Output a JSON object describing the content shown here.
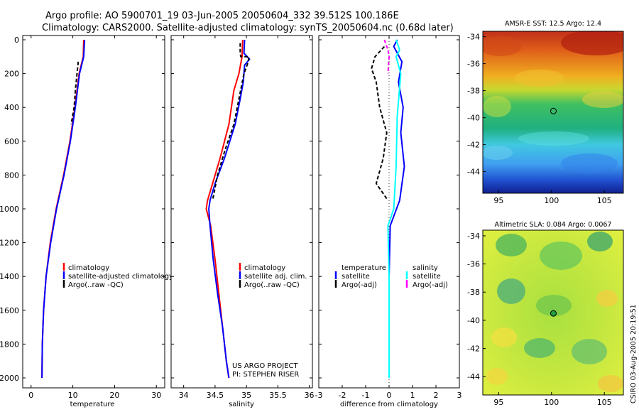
{
  "title_line1": "Argo profile: AO 5900701_19 03-Jun-2005 20050604_332 39.512S 100.186E",
  "title_line2": "Climatology: CARS2000. Satellite-adjusted climatology: synTS_20050604.nc (0.68d later)",
  "credit_project": "US ARGO PROJECT",
  "credit_pi": "PI: STEPHEN RISER",
  "timestamp": "CSIRO 03-Aug-2005 20:19:51",
  "colors": {
    "climatology": "#ff0000",
    "satellite": "#0000ff",
    "argo": "#000000",
    "salinity_satellite": "#00ffff",
    "salinity_argo": "#ff00ff"
  },
  "chart_data": [
    {
      "type": "line",
      "xlabel": "temperature",
      "xlim": [
        -2,
        32
      ],
      "ylim": [
        2050,
        0
      ],
      "x_ticks": [
        "0",
        "10",
        "20",
        "30"
      ],
      "y_ticks": [
        "0",
        "200",
        "400",
        "600",
        "800",
        "1000",
        "1200",
        "1400",
        "1600",
        "1800",
        "2000"
      ],
      "legend": [
        "climatology",
        "satellite-adjusted climatology",
        "Argo(..raw -QC)"
      ],
      "series": [
        {
          "name": "climatology",
          "color": "#ff0000",
          "style": "solid",
          "points": [
            [
              12.6,
              0
            ],
            [
              12.5,
              100
            ],
            [
              11.5,
              200
            ],
            [
              10.5,
              400
            ],
            [
              9.3,
              600
            ],
            [
              7.8,
              800
            ],
            [
              6.0,
              1000
            ],
            [
              4.6,
              1200
            ],
            [
              3.6,
              1400
            ],
            [
              3.0,
              1600
            ],
            [
              2.7,
              1800
            ],
            [
              2.6,
              2000
            ]
          ]
        },
        {
          "name": "satellite-adjusted climatology",
          "color": "#0000ff",
          "style": "solid",
          "points": [
            [
              12.8,
              0
            ],
            [
              12.6,
              100
            ],
            [
              11.6,
              200
            ],
            [
              10.6,
              400
            ],
            [
              9.4,
              600
            ],
            [
              7.9,
              800
            ],
            [
              6.1,
              1000
            ],
            [
              4.7,
              1200
            ],
            [
              3.6,
              1400
            ],
            [
              3.0,
              1600
            ],
            [
              2.7,
              1800
            ],
            [
              2.6,
              2000
            ]
          ]
        },
        {
          "name": "Argo(..raw -QC)",
          "color": "#000000",
          "style": "dashed",
          "points": [
            [
              11.3,
              130
            ],
            [
              11.0,
              200
            ],
            [
              10.6,
              300
            ],
            [
              10.3,
              400
            ],
            [
              9.6,
              500
            ]
          ]
        }
      ]
    },
    {
      "type": "line",
      "xlabel": "salinity",
      "xlim": [
        33.8,
        36.05
      ],
      "ylim": [
        2050,
        0
      ],
      "x_ticks": [
        "34",
        "34.5",
        "35",
        "35.5",
        "36"
      ],
      "legend": [
        "climatology",
        "satellite adj. clim.",
        "Argo(..raw -QC)"
      ],
      "series": [
        {
          "name": "climatology",
          "color": "#ff0000",
          "style": "solid",
          "points": [
            [
              34.94,
              0
            ],
            [
              34.93,
              100
            ],
            [
              34.88,
              200
            ],
            [
              34.8,
              300
            ],
            [
              34.72,
              500
            ],
            [
              34.58,
              700
            ],
            [
              34.46,
              850
            ],
            [
              34.38,
              950
            ],
            [
              34.36,
              1000
            ],
            [
              34.43,
              1100
            ],
            [
              34.5,
              1300
            ],
            [
              34.56,
              1500
            ],
            [
              34.62,
              1700
            ],
            [
              34.68,
              1900
            ],
            [
              34.72,
              2000
            ]
          ]
        },
        {
          "name": "satellite adj. clim.",
          "color": "#0000ff",
          "style": "solid",
          "points": [
            [
              34.97,
              0
            ],
            [
              34.96,
              80
            ],
            [
              35.05,
              115
            ],
            [
              34.97,
              150
            ],
            [
              34.95,
              250
            ],
            [
              34.9,
              350
            ],
            [
              34.82,
              500
            ],
            [
              34.65,
              700
            ],
            [
              34.5,
              850
            ],
            [
              34.42,
              950
            ],
            [
              34.4,
              1000
            ],
            [
              34.42,
              1100
            ],
            [
              34.47,
              1300
            ],
            [
              34.54,
              1500
            ],
            [
              34.62,
              1700
            ],
            [
              34.68,
              1900
            ],
            [
              34.72,
              2000
            ]
          ]
        },
        {
          "name": "Argo(..raw -QC)",
          "color": "#000000",
          "style": "dashed",
          "points": [
            [
              34.9,
              20
            ],
            [
              34.9,
              80
            ],
            [
              34.91,
              100
            ],
            [
              35.04,
              100
            ],
            [
              35.02,
              140
            ],
            [
              34.96,
              200
            ],
            [
              34.88,
              350
            ],
            [
              34.8,
              500
            ],
            [
              34.66,
              650
            ],
            [
              34.54,
              800
            ],
            [
              34.46,
              950
            ]
          ]
        }
      ]
    },
    {
      "type": "line",
      "xlabel": "difference from climatology",
      "xlim": [
        -3,
        3
      ],
      "ylim": [
        2050,
        0
      ],
      "x_ticks": [
        "-3",
        "-2",
        "-1",
        "0",
        "1",
        "2",
        "3"
      ],
      "legend_groups": [
        {
          "heading": "temperature",
          "items": [
            "satellite",
            "Argo(-adj)"
          ]
        },
        {
          "heading": "salinity",
          "items": [
            "satellite",
            "Argo(-adj)"
          ]
        }
      ],
      "series": [
        {
          "name": "satellite",
          "group": "temperature",
          "color": "#0000ff",
          "style": "solid",
          "points": [
            [
              0.35,
              0
            ],
            [
              0.2,
              40
            ],
            [
              0.55,
              130
            ],
            [
              0.4,
              250
            ],
            [
              0.6,
              400
            ],
            [
              0.5,
              550
            ],
            [
              0.65,
              750
            ],
            [
              0.45,
              950
            ],
            [
              0.05,
              1100
            ],
            [
              0.0,
              1400
            ],
            [
              0.0,
              2000
            ]
          ]
        },
        {
          "name": "Argo(-adj)",
          "group": "temperature",
          "color": "#000000",
          "style": "dashed",
          "points": [
            [
              -0.2,
              40
            ],
            [
              -0.6,
              100
            ],
            [
              -0.75,
              170
            ],
            [
              -0.55,
              250
            ],
            [
              -0.4,
              400
            ],
            [
              -0.1,
              550
            ],
            [
              -0.25,
              700
            ],
            [
              -0.55,
              850
            ],
            [
              -0.05,
              950
            ]
          ]
        },
        {
          "name": "satellite",
          "group": "salinity",
          "color": "#00ffff",
          "style": "solid",
          "points": [
            [
              0.3,
              0
            ],
            [
              0.45,
              60
            ],
            [
              0.3,
              100
            ],
            [
              0.5,
              200
            ],
            [
              0.35,
              450
            ],
            [
              0.3,
              750
            ],
            [
              0.2,
              1000
            ],
            [
              -0.05,
              1100
            ],
            [
              0.0,
              1400
            ],
            [
              0.0,
              2000
            ]
          ]
        },
        {
          "name": "Argo(-adj)",
          "group": "salinity",
          "color": "#ff00ff",
          "style": "dashed",
          "points": [
            [
              -0.2,
              0
            ],
            [
              -0.05,
              60
            ],
            [
              0.0,
              100
            ],
            [
              -0.05,
              200
            ]
          ]
        }
      ]
    },
    {
      "type": "heatmap",
      "title": "AMSR-E SST: 12.5 Argo: 12.4",
      "x_ticks": [
        "95",
        "100",
        "105"
      ],
      "y_ticks": [
        "-34",
        "-36",
        "-38",
        "-40",
        "-42",
        "-44"
      ],
      "xlim": [
        93.5,
        106.8
      ],
      "ylim": [
        -33.6,
        -45.6
      ],
      "marker": [
        100.186,
        -39.512
      ]
    },
    {
      "type": "heatmap",
      "title": "Altimetric SLA: 0.084 Argo: 0.0067",
      "x_ticks": [
        "95",
        "100",
        "105"
      ],
      "y_ticks": [
        "-34",
        "-36",
        "-38",
        "-40",
        "-42",
        "-44"
      ],
      "xlim": [
        93.5,
        106.8
      ],
      "ylim": [
        -33.6,
        -45.3
      ],
      "marker": [
        100.186,
        -39.512
      ]
    }
  ]
}
